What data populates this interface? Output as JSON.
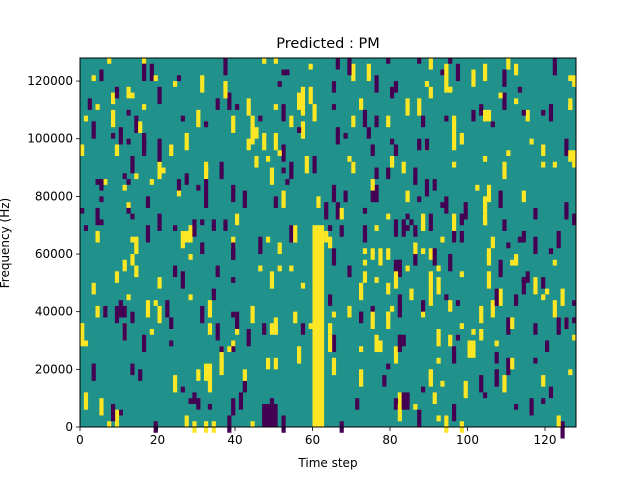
{
  "chart_data": {
    "type": "heatmap",
    "title": "Predicted : PM",
    "xlabel": "Time step",
    "ylabel": "Frequency (Hz)",
    "xlim": [
      0,
      128
    ],
    "ylim": [
      0,
      128000
    ],
    "xticks": [
      0,
      20,
      40,
      60,
      80,
      100,
      120
    ],
    "yticks": [
      0,
      20000,
      40000,
      60000,
      80000,
      100000,
      120000
    ],
    "ytick_labels": [
      "0",
      "20000",
      "40000",
      "60000",
      "80000",
      "100000",
      "120000"
    ],
    "grid": false,
    "legend": "none",
    "values_present": [
      -1,
      0,
      1
    ],
    "colors": {
      "background_value_0": "#21918c",
      "value_1": "#fde725",
      "value_neg1": "#440154"
    },
    "notable_cells": {
      "positive_band": {
        "value": 1,
        "x_range": [
          60,
          63
        ],
        "y_range": [
          0,
          70000
        ]
      },
      "negative_block": {
        "value": -1,
        "x_range": [
          47,
          51
        ],
        "y_range": [
          0,
          8000
        ]
      }
    }
  }
}
